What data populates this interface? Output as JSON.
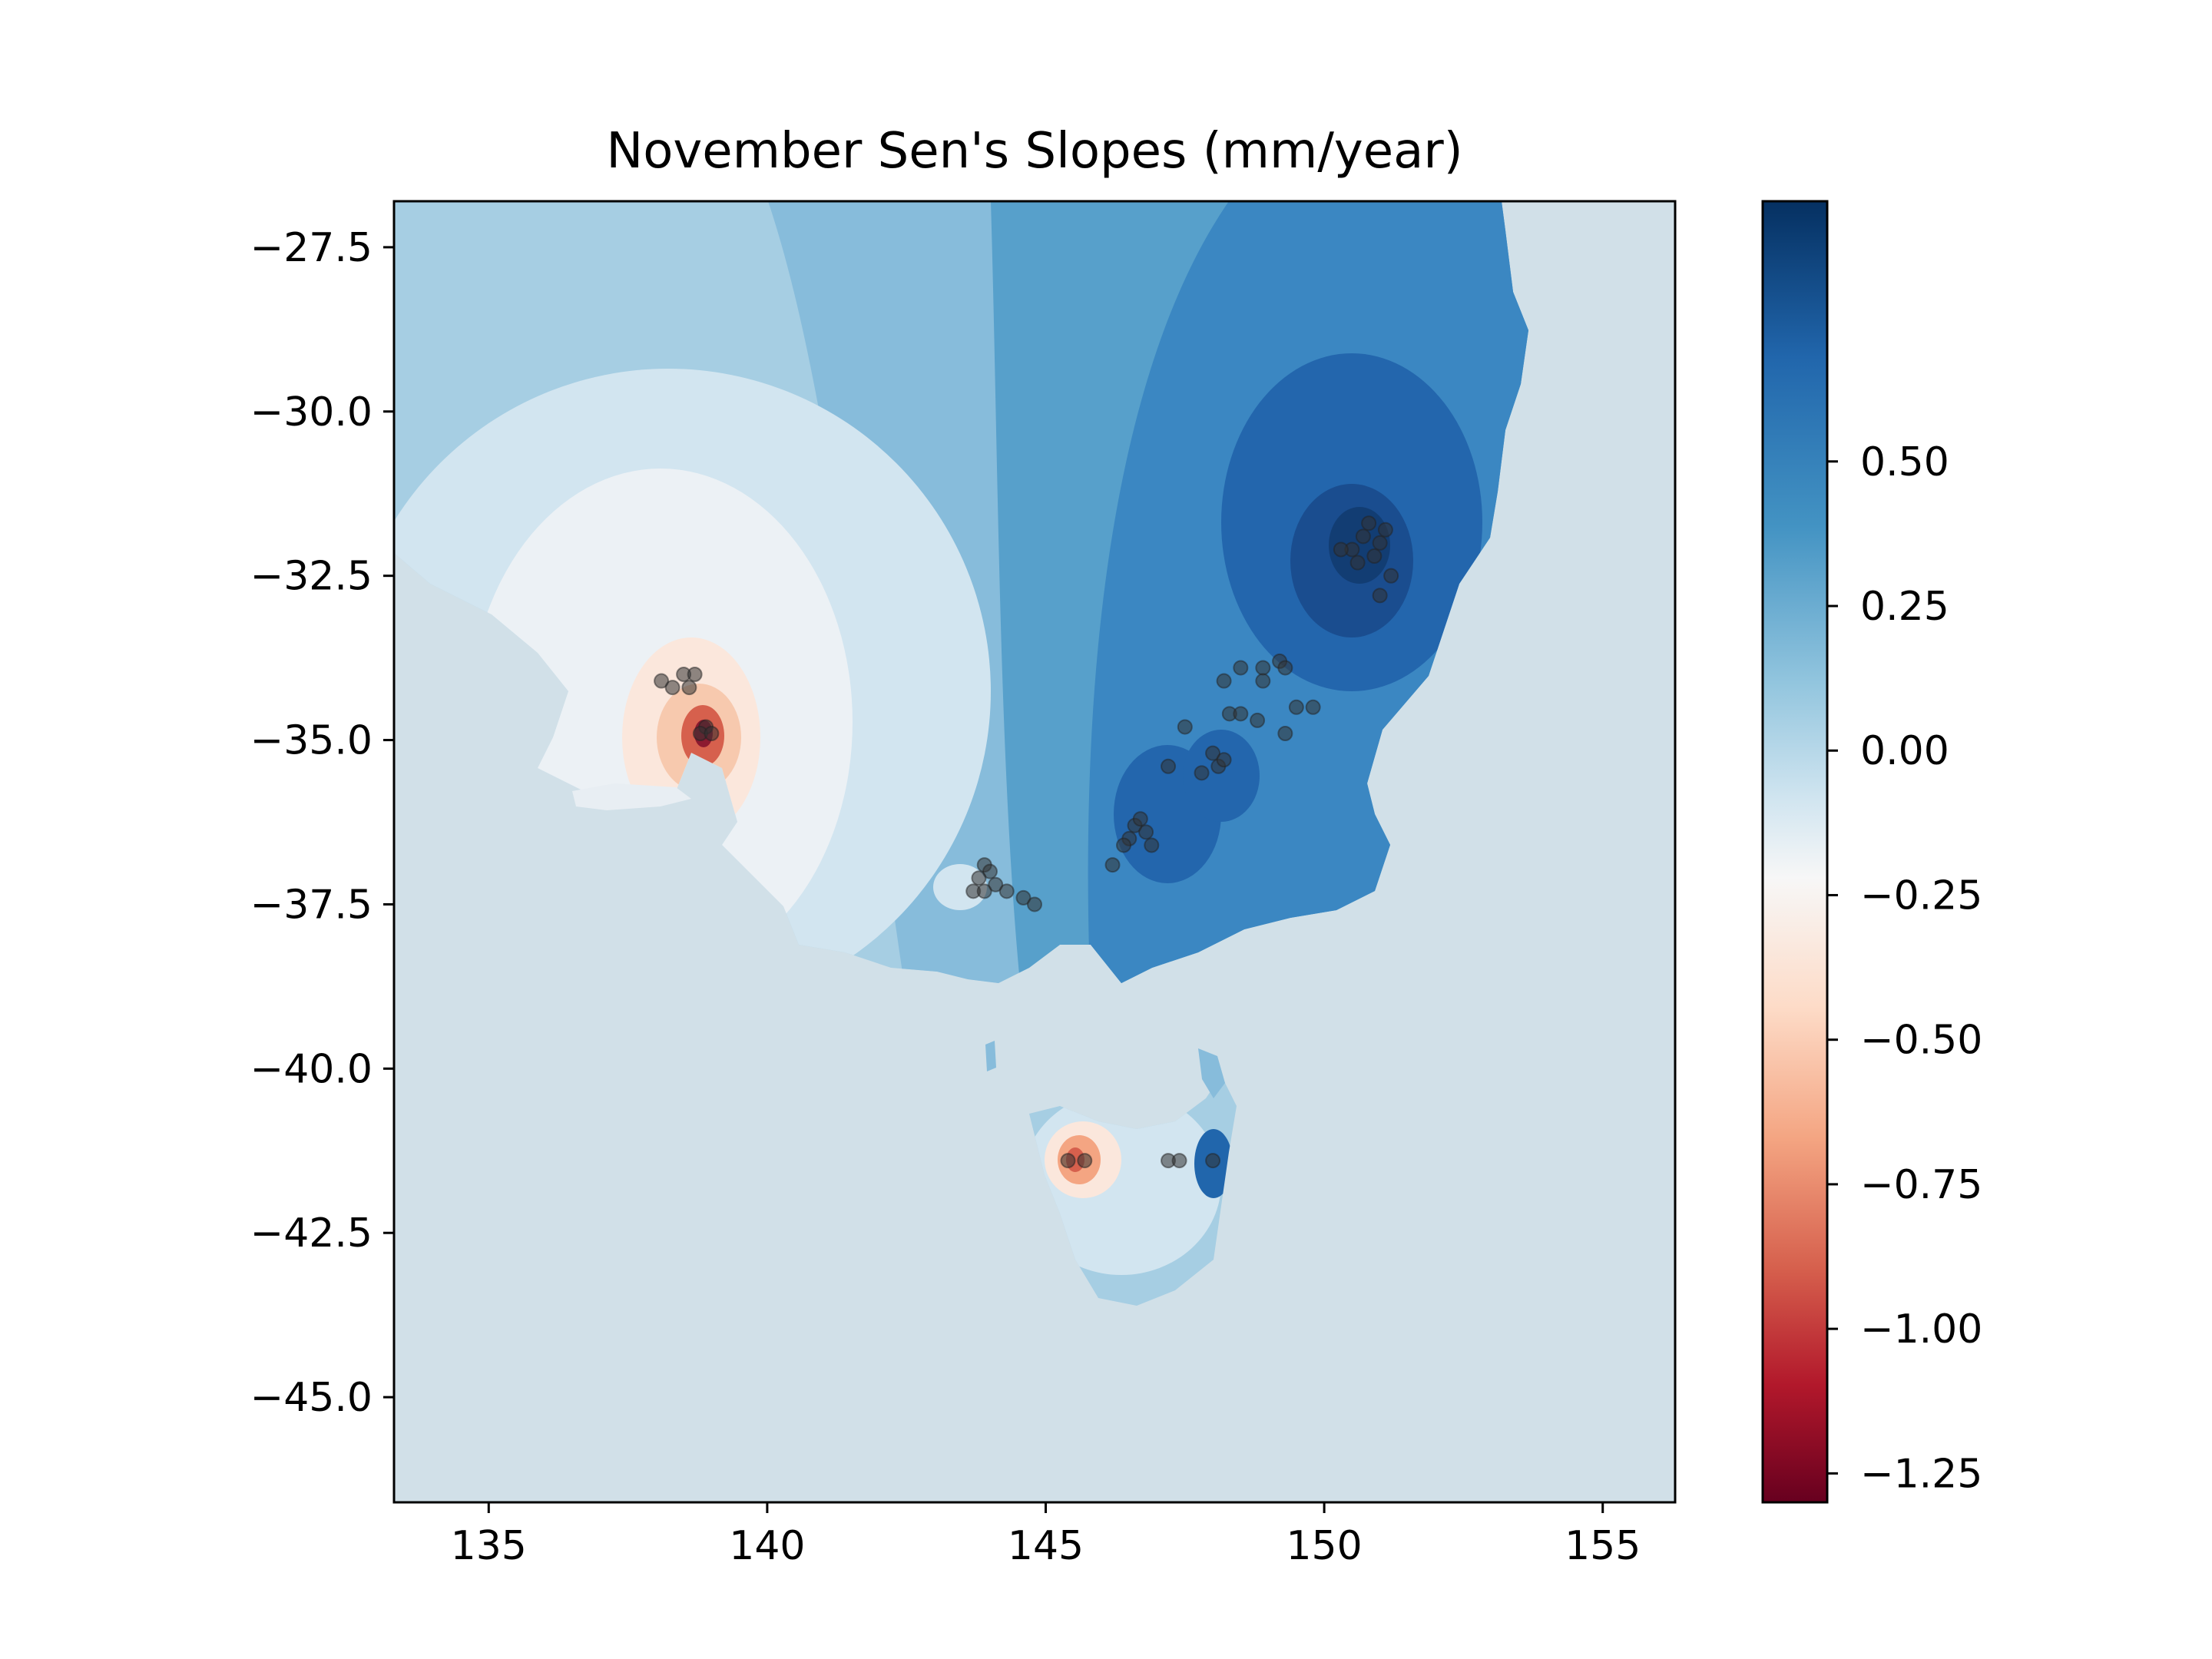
{
  "title": "November Sen's Slopes (mm/year)",
  "map": {
    "xlim": [
      133.3,
      156.3
    ],
    "ylim": [
      -46.6,
      -26.8
    ],
    "x_ticks": [
      135,
      140,
      145,
      150,
      155
    ],
    "y_ticks": [
      -27.5,
      -30.0,
      -32.5,
      -35.0,
      -37.5,
      -40.0,
      -42.5,
      -45.0
    ],
    "ocean_color": "#d1e0e8",
    "colormap": "RdBu",
    "colorbar": {
      "range": [
        -1.3,
        0.95
      ],
      "ticks": [
        0.5,
        0.25,
        0.0,
        -0.25,
        -0.5,
        -0.75,
        -1.0,
        -1.25
      ],
      "tick_labels": [
        "0.50",
        "0.25",
        "0.00",
        "−0.25",
        "−0.50",
        "−0.75",
        "−1.00",
        "−1.25"
      ]
    },
    "x_tick_labels": [
      "135",
      "140",
      "145",
      "150",
      "155"
    ],
    "y_tick_labels": [
      "−27.5",
      "−30.0",
      "−32.5",
      "−35.0",
      "−37.5",
      "−40.0",
      "−42.5",
      "−45.0"
    ],
    "stations": [
      [
        150.7,
        -31.9
      ],
      [
        151.0,
        -32.0
      ],
      [
        150.5,
        -32.1
      ],
      [
        151.1,
        -31.8
      ],
      [
        150.9,
        -32.2
      ],
      [
        150.3,
        -32.1
      ],
      [
        151.2,
        -32.5
      ],
      [
        150.8,
        -31.7
      ],
      [
        150.6,
        -32.3
      ],
      [
        151.0,
        -32.8
      ],
      [
        149.2,
        -33.8
      ],
      [
        148.9,
        -33.9
      ],
      [
        149.3,
        -33.9
      ],
      [
        148.5,
        -33.9
      ],
      [
        148.2,
        -34.1
      ],
      [
        149.5,
        -34.5
      ],
      [
        149.8,
        -34.5
      ],
      [
        148.9,
        -34.1
      ],
      [
        148.8,
        -34.7
      ],
      [
        148.3,
        -34.6
      ],
      [
        148.0,
        -35.2
      ],
      [
        148.1,
        -35.4
      ],
      [
        148.2,
        -35.3
      ],
      [
        147.8,
        -35.5
      ],
      [
        147.5,
        -34.8
      ],
      [
        149.3,
        -34.9
      ],
      [
        147.2,
        -35.4
      ],
      [
        148.5,
        -34.6
      ],
      [
        146.6,
        -36.3
      ],
      [
        146.8,
        -36.4
      ],
      [
        146.5,
        -36.5
      ],
      [
        146.4,
        -36.6
      ],
      [
        146.9,
        -36.6
      ],
      [
        146.7,
        -36.2
      ],
      [
        146.2,
        -36.9
      ],
      [
        143.9,
        -36.9
      ],
      [
        144.0,
        -37.0
      ],
      [
        143.8,
        -37.1
      ],
      [
        143.7,
        -37.3
      ],
      [
        144.1,
        -37.2
      ],
      [
        144.3,
        -37.3
      ],
      [
        143.9,
        -37.3
      ],
      [
        144.6,
        -37.4
      ],
      [
        144.8,
        -37.5
      ],
      [
        138.1,
        -34.1
      ],
      [
        138.3,
        -34.2
      ],
      [
        138.5,
        -34.0
      ],
      [
        138.7,
        -34.0
      ],
      [
        138.6,
        -34.2
      ],
      [
        138.9,
        -34.8
      ],
      [
        138.8,
        -34.9
      ],
      [
        139.0,
        -34.9
      ],
      [
        145.4,
        -41.4
      ],
      [
        145.7,
        -41.4
      ],
      [
        147.2,
        -41.4
      ],
      [
        147.4,
        -41.4
      ],
      [
        148.0,
        -41.4
      ]
    ]
  }
}
